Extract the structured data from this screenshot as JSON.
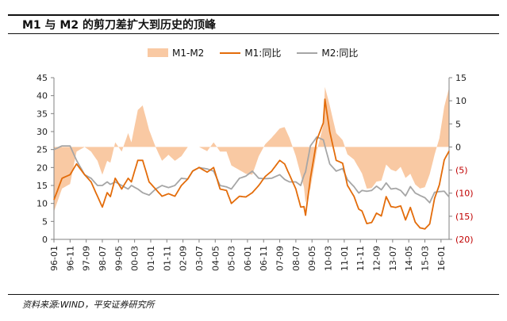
{
  "title": "M1 与 M2 的剪刀差扩大到历史的顶峰",
  "source": "资料来源:WIND，平安证券研究所",
  "legend": [
    {
      "label": "M1-M2",
      "color": "#f9c9a3",
      "kind": "area"
    },
    {
      "label": "M1:同比",
      "color": "#e36c0a",
      "kind": "line"
    },
    {
      "label": "M2:同比",
      "color": "#a6a6a6",
      "kind": "line"
    }
  ],
  "chart_data": {
    "type": "line",
    "title": "M1 与 M2 的剪刀差扩大到历史的顶峰",
    "x_start": "1996-01",
    "x_end": "2016-06",
    "x_tick_labels": [
      "96-01",
      "96-11",
      "97-09",
      "98-07",
      "99-05",
      "00-03",
      "01-01",
      "01-11",
      "02-09",
      "03-07",
      "04-05",
      "05-03",
      "06-01",
      "06-11",
      "07-09",
      "08-07",
      "09-05",
      "10-03",
      "11-01",
      "11-11",
      "12-09",
      "13-07",
      "14-05",
      "15-03",
      "16-01"
    ],
    "left_axis": {
      "min": 0,
      "max": 45,
      "ticks": [
        "0",
        "5",
        "10",
        "15",
        "20",
        "25",
        "30",
        "35",
        "40",
        "45"
      ]
    },
    "right_axis": {
      "min": -20,
      "max": 15,
      "ticks": [
        "(20)",
        "(15)",
        "(10)",
        "(5)",
        "0",
        "5",
        "10",
        "15"
      ],
      "color": "#c00000"
    },
    "series": [
      {
        "name": "M1:同比",
        "axis": "left",
        "color": "#e36c0a",
        "points": [
          [
            "1996-01",
            11
          ],
          [
            "1996-06",
            17
          ],
          [
            "1996-11",
            18
          ],
          [
            "1997-03",
            21
          ],
          [
            "1997-08",
            18
          ],
          [
            "1997-12",
            16
          ],
          [
            "1998-04",
            12
          ],
          [
            "1998-07",
            9
          ],
          [
            "1998-10",
            13
          ],
          [
            "1998-12",
            11.9
          ],
          [
            "1999-03",
            17
          ],
          [
            "1999-07",
            14
          ],
          [
            "1999-11",
            17
          ],
          [
            "2000-01",
            16
          ],
          [
            "2000-05",
            22
          ],
          [
            "2000-08",
            22
          ],
          [
            "2000-12",
            16
          ],
          [
            "2001-04",
            14
          ],
          [
            "2001-08",
            12
          ],
          [
            "2001-12",
            12.7
          ],
          [
            "2002-04",
            12
          ],
          [
            "2002-08",
            15
          ],
          [
            "2002-12",
            16.8
          ],
          [
            "2003-03",
            19
          ],
          [
            "2003-07",
            20
          ],
          [
            "2003-12",
            18.7
          ],
          [
            "2004-04",
            20
          ],
          [
            "2004-08",
            14
          ],
          [
            "2004-12",
            13.6
          ],
          [
            "2005-03",
            10
          ],
          [
            "2005-08",
            12
          ],
          [
            "2005-12",
            11.8
          ],
          [
            "2006-04",
            13
          ],
          [
            "2006-08",
            15
          ],
          [
            "2006-12",
            17.5
          ],
          [
            "2007-04",
            19
          ],
          [
            "2007-09",
            22
          ],
          [
            "2007-12",
            21
          ],
          [
            "2008-03",
            18
          ],
          [
            "2008-07",
            14
          ],
          [
            "2008-10",
            9
          ],
          [
            "2008-12",
            9.1
          ],
          [
            "2009-01",
            6.7
          ],
          [
            "2009-04",
            17
          ],
          [
            "2009-08",
            27.7
          ],
          [
            "2009-12",
            32.4
          ],
          [
            "2010-01",
            39
          ],
          [
            "2010-04",
            30
          ],
          [
            "2010-08",
            22
          ],
          [
            "2010-12",
            21.2
          ],
          [
            "2011-03",
            15
          ],
          [
            "2011-07",
            12
          ],
          [
            "2011-10",
            8.4
          ],
          [
            "2011-12",
            7.9
          ],
          [
            "2012-03",
            4.4
          ],
          [
            "2012-06",
            4.7
          ],
          [
            "2012-09",
            7.3
          ],
          [
            "2012-12",
            6.5
          ],
          [
            "2013-03",
            11.9
          ],
          [
            "2013-06",
            9.1
          ],
          [
            "2013-09",
            8.9
          ],
          [
            "2013-12",
            9.3
          ],
          [
            "2014-03",
            5.4
          ],
          [
            "2014-06",
            8.9
          ],
          [
            "2014-09",
            4.8
          ],
          [
            "2014-12",
            3.2
          ],
          [
            "2015-03",
            2.9
          ],
          [
            "2015-06",
            4.3
          ],
          [
            "2015-09",
            11.4
          ],
          [
            "2015-12",
            15.2
          ],
          [
            "2016-03",
            22.1
          ],
          [
            "2016-06",
            24.6
          ]
        ]
      },
      {
        "name": "M2:同比",
        "axis": "left",
        "color": "#a6a6a6",
        "points": [
          [
            "1996-01",
            25
          ],
          [
            "1996-06",
            26
          ],
          [
            "1996-11",
            26
          ],
          [
            "1997-03",
            22
          ],
          [
            "1997-08",
            18
          ],
          [
            "1997-12",
            17
          ],
          [
            "1998-04",
            15
          ],
          [
            "1998-07",
            15
          ],
          [
            "1998-10",
            16
          ],
          [
            "1998-12",
            15.3
          ],
          [
            "1999-03",
            16
          ],
          [
            "1999-07",
            15
          ],
          [
            "1999-11",
            14
          ],
          [
            "2000-01",
            15
          ],
          [
            "2000-05",
            14
          ],
          [
            "2000-08",
            13
          ],
          [
            "2000-12",
            12.3
          ],
          [
            "2001-04",
            14
          ],
          [
            "2001-08",
            15
          ],
          [
            "2001-12",
            14.4
          ],
          [
            "2002-04",
            15
          ],
          [
            "2002-08",
            17
          ],
          [
            "2002-12",
            16.8
          ],
          [
            "2003-03",
            19
          ],
          [
            "2003-07",
            20
          ],
          [
            "2003-12",
            19.6
          ],
          [
            "2004-04",
            19
          ],
          [
            "2004-08",
            15
          ],
          [
            "2004-12",
            14.6
          ],
          [
            "2005-03",
            14
          ],
          [
            "2005-08",
            17
          ],
          [
            "2005-12",
            17.6
          ],
          [
            "2006-04",
            19
          ],
          [
            "2006-08",
            17
          ],
          [
            "2006-12",
            16.9
          ],
          [
            "2007-04",
            17
          ],
          [
            "2007-09",
            18
          ],
          [
            "2007-12",
            16.7
          ],
          [
            "2008-03",
            16
          ],
          [
            "2008-07",
            16
          ],
          [
            "2008-10",
            15
          ],
          [
            "2008-12",
            17.8
          ],
          [
            "2009-01",
            18.8
          ],
          [
            "2009-04",
            26
          ],
          [
            "2009-08",
            28.5
          ],
          [
            "2009-12",
            27.7
          ],
          [
            "2010-01",
            26
          ],
          [
            "2010-04",
            21
          ],
          [
            "2010-08",
            19
          ],
          [
            "2010-12",
            19.7
          ],
          [
            "2011-03",
            16.6
          ],
          [
            "2011-07",
            14.7
          ],
          [
            "2011-10",
            12.9
          ],
          [
            "2011-12",
            13.6
          ],
          [
            "2012-03",
            13.4
          ],
          [
            "2012-06",
            13.6
          ],
          [
            "2012-09",
            14.8
          ],
          [
            "2012-12",
            13.8
          ],
          [
            "2013-03",
            15.7
          ],
          [
            "2013-06",
            14
          ],
          [
            "2013-09",
            14.2
          ],
          [
            "2013-12",
            13.6
          ],
          [
            "2014-03",
            12.1
          ],
          [
            "2014-06",
            14.7
          ],
          [
            "2014-09",
            12.9
          ],
          [
            "2014-12",
            12.2
          ],
          [
            "2015-03",
            11.6
          ],
          [
            "2015-06",
            10.2
          ],
          [
            "2015-09",
            13.1
          ],
          [
            "2015-12",
            13.3
          ],
          [
            "2016-03",
            13.4
          ],
          [
            "2016-06",
            11.8
          ]
        ]
      }
    ],
    "difference_series": {
      "name": "M1-M2",
      "axis": "right",
      "color": "#f9c9a3",
      "definition": "M1:同比 - M2:同比"
    }
  }
}
